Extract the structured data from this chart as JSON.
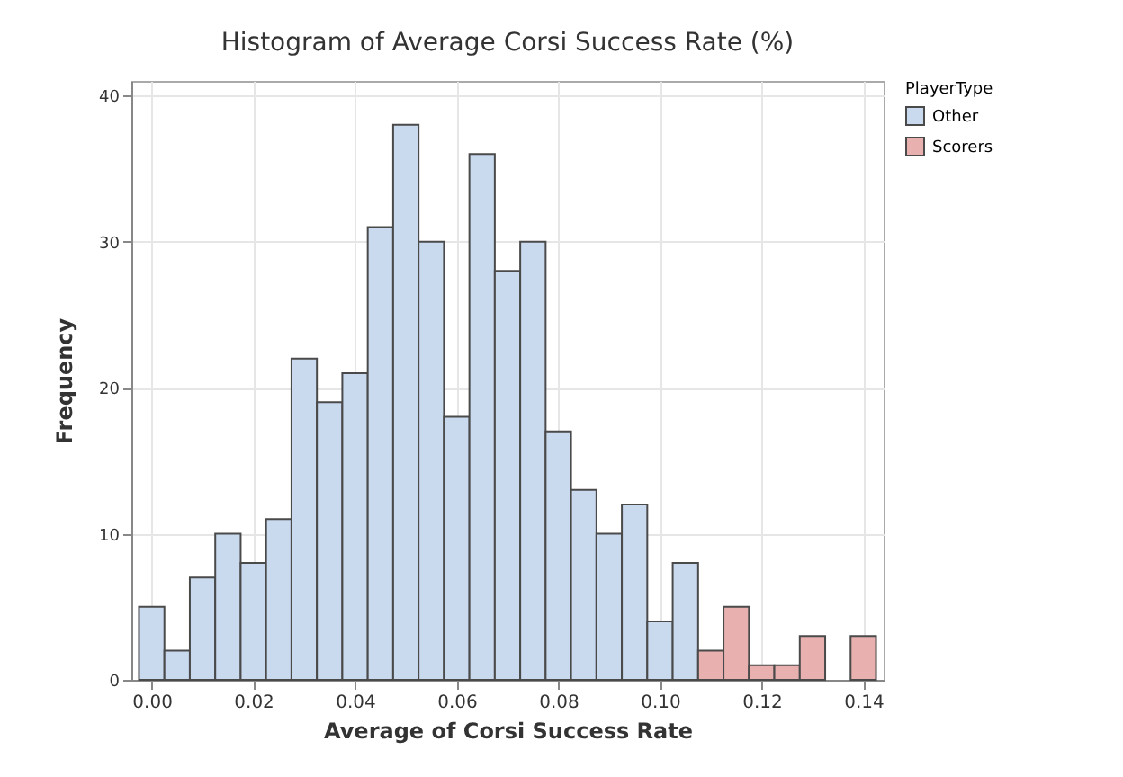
{
  "chart_data": {
    "type": "histogram",
    "title": "Histogram of Average Corsi Success Rate (%)",
    "xlabel": "Average of Corsi Success Rate",
    "ylabel": "Frequency",
    "legend_title": "PlayerType",
    "bins": [
      -0.0025,
      0.0025,
      0.0075,
      0.0125,
      0.0175,
      0.0225,
      0.0275,
      0.0325,
      0.0375,
      0.0425,
      0.0475,
      0.0525,
      0.0575,
      0.0625,
      0.0675,
      0.0725,
      0.0775,
      0.0825,
      0.0875,
      0.0925,
      0.0975,
      0.1025,
      0.1075,
      0.1125,
      0.1175,
      0.1225,
      0.1275,
      0.1325,
      0.1375,
      0.1425
    ],
    "series": [
      {
        "name": "Other",
        "color": "#c9d9ee",
        "values": [
          5,
          2,
          7,
          10,
          8,
          11,
          22,
          19,
          21,
          31,
          38,
          30,
          18,
          36,
          28,
          30,
          17,
          13,
          10,
          12,
          4,
          8,
          0,
          0,
          0,
          0,
          0,
          0,
          0
        ]
      },
      {
        "name": "Scorers",
        "color": "#e9b0b0",
        "values": [
          0,
          0,
          0,
          0,
          0,
          0,
          0,
          0,
          0,
          0,
          0,
          0,
          0,
          0,
          0,
          0,
          0,
          0,
          0,
          0,
          0,
          0,
          2,
          5,
          1,
          1,
          3,
          0,
          3
        ]
      }
    ],
    "xlim": [
      -0.004,
      0.144
    ],
    "xticks": [
      {
        "value": 0,
        "label": "0.00"
      },
      {
        "value": 0.02,
        "label": "0.02"
      },
      {
        "value": 0.04,
        "label": "0.04"
      },
      {
        "value": 0.06,
        "label": "0.06"
      },
      {
        "value": 0.08,
        "label": "0.08"
      },
      {
        "value": 0.1,
        "label": "0.10"
      },
      {
        "value": 0.12,
        "label": "0.12"
      },
      {
        "value": 0.14,
        "label": "0.14"
      }
    ],
    "ylim": [
      0,
      41
    ],
    "yticks": [
      0,
      10,
      20,
      30,
      40
    ],
    "grid": true,
    "legend": "top right"
  }
}
